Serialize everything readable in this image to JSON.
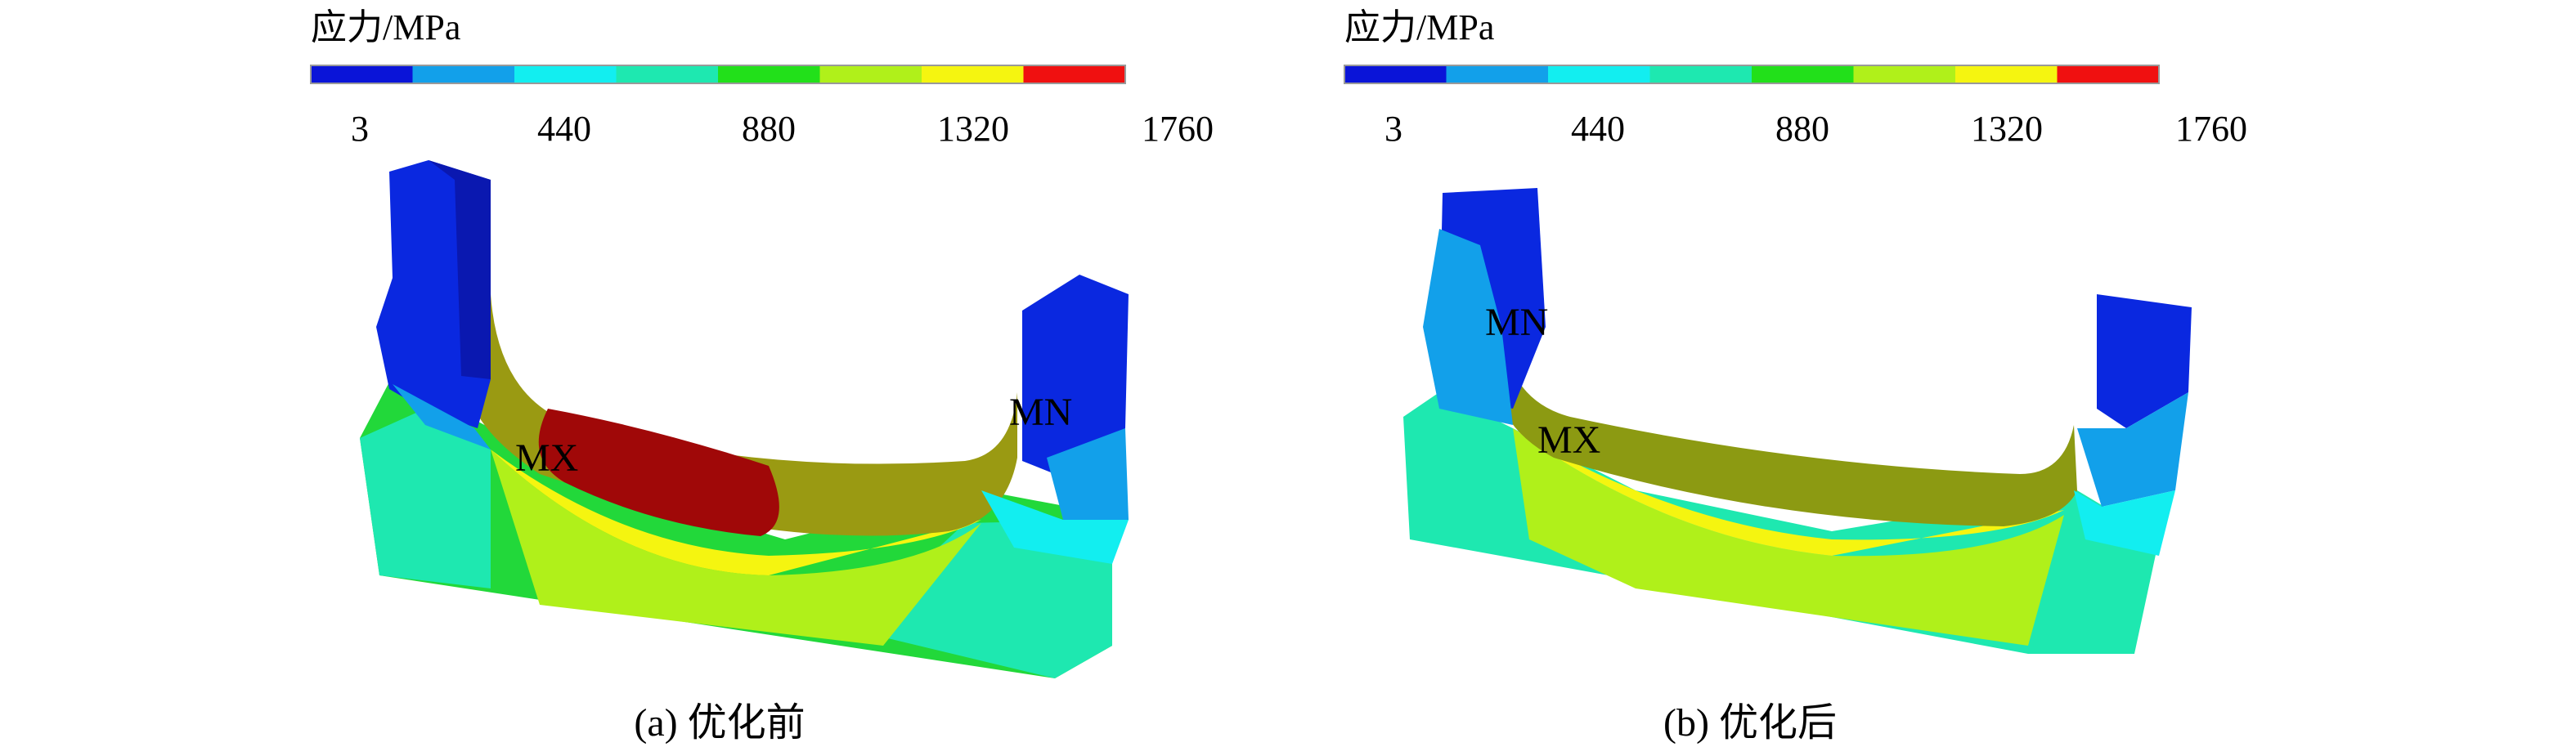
{
  "panels": [
    {
      "legend": {
        "title": "应力/MPa",
        "ticks": [
          3,
          440,
          880,
          1320,
          1760
        ],
        "colors": [
          "#0a14d8",
          "#12a0ea",
          "#12eef0",
          "#1ee8b0",
          "#22e01a",
          "#b0f01a",
          "#f5f510",
          "#f01010"
        ]
      },
      "labels": [
        "MX",
        "MN"
      ],
      "caption": "(a) 优化前"
    },
    {
      "legend": {
        "title": "应力/MPa",
        "ticks": [
          3,
          440,
          880,
          1320,
          1760
        ],
        "colors": [
          "#0a14d8",
          "#12a0ea",
          "#12eef0",
          "#1ee8b0",
          "#22e01a",
          "#b0f01a",
          "#f5f510",
          "#f01010"
        ]
      },
      "labels": [
        "MN",
        "MX"
      ],
      "caption": "(b) 优化后"
    }
  ]
}
